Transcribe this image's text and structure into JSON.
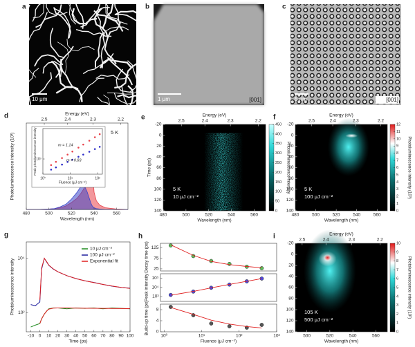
{
  "panels": {
    "a": {
      "label": "a",
      "scale": "10 μm"
    },
    "b": {
      "label": "b",
      "scale": "1 μm",
      "zone": "[001]"
    },
    "c": {
      "label": "c",
      "scale": "5 nm",
      "zone": "[001]"
    }
  },
  "chart_data": [
    {
      "type": "area",
      "panel": "d",
      "xlabel": "Wavelength (nm)",
      "ylabel": "Photoluminescence intensity (10³)",
      "x2label": "Energy (eV)",
      "x2ticks": [
        2.5,
        2.4,
        2.3,
        2.2
      ],
      "xlim": [
        480,
        570
      ],
      "xticks": [
        480,
        500,
        520,
        540,
        560
      ],
      "ylim": [
        0,
        10
      ],
      "x": [
        480,
        490,
        500,
        505,
        510,
        515,
        520,
        525,
        528,
        530,
        532,
        534,
        535,
        536,
        537,
        538,
        539,
        540,
        542,
        545,
        550,
        560,
        570
      ],
      "series": [
        {
          "color": "#e8424a",
          "values": [
            0,
            0,
            0.05,
            0.1,
            0.2,
            0.4,
            0.8,
            1.3,
            1.8,
            2.2,
            2.7,
            3.5,
            4.5,
            6.5,
            9.5,
            7,
            4,
            2,
            1,
            0.5,
            0.2,
            0.05,
            0
          ]
        },
        {
          "color": "#3a45c8",
          "values": [
            0,
            0,
            0.05,
            0.1,
            0.3,
            0.6,
            1.2,
            2,
            2.6,
            2.8,
            2.6,
            2,
            1.6,
            1.2,
            0.8,
            0.5,
            0.3,
            0.2,
            0.1,
            0.05,
            0,
            0,
            0
          ]
        }
      ],
      "annotations": [
        "5 K"
      ]
    },
    {
      "type": "scatter",
      "xlabel": "Fluence (μJ cm⁻²)",
      "ylabel": "Peak photoluminescence intensity",
      "xlog": true,
      "ylog": true,
      "xlim": [
        1,
        150
      ],
      "xticks": [
        {
          "value": 1,
          "label": "10⁰"
        },
        {
          "value": 10,
          "label": "10¹"
        },
        {
          "value": 100,
          "label": "10²"
        }
      ],
      "ylim": [
        100,
        100000
      ],
      "yticks": [
        {
          "value": 1000,
          "label": "10³"
        }
      ],
      "x": [
        2,
        3,
        5,
        8,
        12,
        20,
        30,
        50,
        80,
        120
      ],
      "series": [
        {
          "color": "#e8424a",
          "values": [
            400,
            650,
            1150,
            1950,
            3100,
            5600,
            8900,
            16000,
            27000,
            43000
          ]
        },
        {
          "color": "#2b2bc8",
          "values": [
            200,
            280,
            430,
            640,
            900,
            1400,
            1950,
            3000,
            4500,
            6300
          ]
        }
      ],
      "annotations": [
        "m = 1.14",
        "m = 0.83"
      ]
    },
    {
      "type": "heatmap",
      "panel": "e",
      "xlabel": "Wavelength (nm)",
      "ylabel": "Time (ps)",
      "x2label": "Energy (eV)",
      "x2ticks": [
        2.5,
        2.4,
        2.3,
        2.2
      ],
      "xlim": [
        480,
        570
      ],
      "xticks": [
        480,
        500,
        520,
        540,
        560
      ],
      "ylim": [
        -20,
        140
      ],
      "y_reversed": true,
      "yticks": [
        -20,
        0,
        20,
        40,
        60,
        80,
        100,
        120,
        140
      ],
      "clim": [
        0,
        450
      ],
      "cticks": [
        0,
        50,
        100,
        150,
        200,
        250,
        300,
        350,
        400,
        450
      ],
      "clabel": "Photoluminescence intensity",
      "annotations": [
        "5 K",
        "10 μJ cm⁻²"
      ]
    },
    {
      "type": "heatmap",
      "panel": "f",
      "xlabel": "Wavelength (nm)",
      "x2label": "Energy (eV)",
      "x2ticks": [
        2.5,
        2.4,
        2.3,
        2.2
      ],
      "xlim": [
        480,
        570
      ],
      "xticks": [
        480,
        500,
        520,
        540,
        560
      ],
      "ylim": [
        -20,
        140
      ],
      "y_reversed": true,
      "yticks": [
        -20,
        0,
        20,
        40,
        60,
        80,
        100,
        120,
        140
      ],
      "clim": [
        0,
        12
      ],
      "cticks": [
        0,
        1,
        2,
        3,
        4,
        5,
        6,
        7,
        8,
        9,
        10,
        11,
        12
      ],
      "clabel": "Photoluminescence intensity (10³)",
      "annotations": [
        "5 K",
        "100 μJ cm⁻²"
      ]
    },
    {
      "type": "line",
      "panel": "g",
      "xlabel": "Time (ps)",
      "ylabel": "Photoluminescence intensity",
      "ylog": true,
      "xlim": [
        -15,
        100
      ],
      "xticks": [
        -10,
        0,
        10,
        20,
        30,
        40,
        50,
        60,
        70,
        80,
        90,
        100
      ],
      "ylim": [
        20,
        40000
      ],
      "yticks": [
        {
          "value": 100,
          "label": "10²"
        },
        {
          "value": 10000,
          "label": "10⁴"
        }
      ],
      "x": [
        -10,
        -5,
        0,
        2,
        5,
        8,
        10,
        15,
        20,
        30,
        40,
        50,
        60,
        70,
        80,
        90,
        100
      ],
      "series": [
        {
          "name": "10 μJ cm⁻²",
          "color": "#1f8a1f",
          "values": [
            30,
            35,
            40,
            60,
            90,
            120,
            140,
            150,
            150,
            140,
            150,
            145,
            150,
            140,
            150,
            145,
            140
          ]
        },
        {
          "name": "100 μJ cm⁻²",
          "color": "#1c1c9c",
          "values": [
            200,
            180,
            250,
            4000,
            10000,
            7000,
            5500,
            4000,
            3200,
            2300,
            1800,
            1500,
            1300,
            1100,
            950,
            850,
            800
          ]
        },
        {
          "name": "Exponential fit",
          "color": "#e02020",
          "values": [
            null,
            null,
            300,
            4500,
            10000,
            7200,
            5600,
            4100,
            3200,
            2300,
            1800,
            1500,
            1280,
            1100,
            960,
            860,
            780
          ]
        },
        {
          "color": "#e02020",
          "values": [
            null,
            null,
            40,
            60,
            90,
            120,
            135,
            148,
            150,
            150,
            148,
            147,
            146,
            145,
            144,
            143,
            142
          ]
        }
      ]
    },
    {
      "type": "scatter",
      "panel": "h",
      "ylabel": "Decay time (ps)",
      "xlog": true,
      "xlim": [
        0.8,
        1000
      ],
      "ylim": [
        15,
        145
      ],
      "yticks": [
        25,
        75,
        125
      ],
      "x": [
        1.5,
        6,
        18,
        55,
        160,
        400
      ],
      "series": [
        {
          "color": "#5cc05c",
          "values": [
            135,
            85,
            62,
            48,
            35,
            28
          ]
        },
        {
          "color": "#e02020",
          "kind": "line",
          "values": [
            138,
            88,
            60,
            45,
            36,
            30
          ]
        }
      ]
    },
    {
      "type": "scatter",
      "ylabel": "Peak intensity",
      "xlog": true,
      "ylog": true,
      "xlim": [
        0.8,
        1000
      ],
      "ylim": [
        300,
        300000
      ],
      "yticks": [
        {
          "value": 1000,
          "label": "10³"
        },
        {
          "value": 10000,
          "label": "10⁴"
        },
        {
          "value": 100000,
          "label": "10⁵"
        }
      ],
      "x": [
        1.5,
        6,
        18,
        55,
        160,
        400
      ],
      "series": [
        {
          "color": "#4a4ae0",
          "values": [
            1500,
            3500,
            9000,
            20000,
            45000,
            90000
          ]
        },
        {
          "color": "#e02020",
          "kind": "line",
          "values": [
            1400,
            3600,
            8800,
            21000,
            46000,
            88000
          ]
        }
      ]
    },
    {
      "type": "scatter",
      "ylabel": "Build-up time (ps)",
      "xlabel": "Fluence (μJ cm⁻²)",
      "xlog": true,
      "xlim": [
        0.8,
        1000
      ],
      "xticks": [
        {
          "value": 1,
          "label": "10⁰"
        },
        {
          "value": 10,
          "label": "10¹"
        },
        {
          "value": 100,
          "label": "10²"
        },
        {
          "value": 1000,
          "label": "10³"
        }
      ],
      "ylim": [
        0,
        10
      ],
      "yticks": [
        0,
        4,
        8
      ],
      "x": [
        1.5,
        6,
        18,
        55,
        160,
        400
      ],
      "series": [
        {
          "color": "#555555",
          "values": [
            9,
            6,
            3,
            2,
            1.5,
            2.5
          ]
        },
        {
          "color": "#e02020",
          "kind": "line",
          "values": [
            8.8,
            6.3,
            4.2,
            2.8,
            1.9,
            1.4
          ]
        }
      ]
    },
    {
      "type": "heatmap",
      "panel": "i",
      "xlabel": "Wavelength (nm)",
      "x2label": "Energy (eV)",
      "x2ticks": [
        2.5,
        2.4,
        2.3,
        2.2
      ],
      "xlim": [
        490,
        570
      ],
      "xticks": [
        500,
        520,
        540,
        560
      ],
      "ylim": [
        -20,
        140
      ],
      "y_reversed": true,
      "yticks": [
        -20,
        0,
        20,
        40,
        60,
        80,
        100,
        120,
        140
      ],
      "clim": [
        0,
        10
      ],
      "cticks": [
        0,
        1,
        2,
        3,
        4,
        5,
        6,
        7,
        8,
        9,
        10
      ],
      "clabel": "Photoluminescence intensity (10³)",
      "annotations": [
        "105 K",
        "500 μJ cm⁻²"
      ]
    }
  ]
}
